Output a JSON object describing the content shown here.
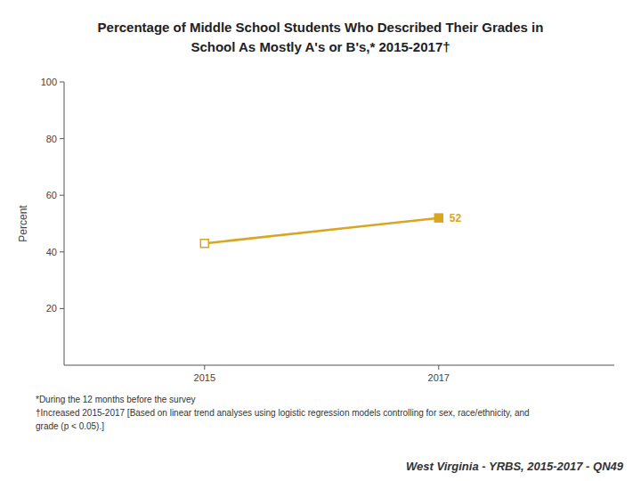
{
  "chart_data": {
    "type": "line",
    "title": "Percentage of Middle School Students Who Described Their Grades in",
    "subtitle": "School As Mostly A's or B's,* 2015-2017†",
    "x": [
      2015,
      2017
    ],
    "values": [
      43.0,
      52.0
    ],
    "xlim": [
      2013.8,
      2018.5
    ],
    "xticks": [
      2015,
      2017
    ],
    "ylim": [
      0,
      100
    ],
    "yticks": [
      20,
      40,
      60,
      80,
      100
    ],
    "y_label": "Percent",
    "color": "#DAA520",
    "marker": "square",
    "grid": false,
    "annotations": [
      {
        "x": 2017,
        "y": 52,
        "text": "52"
      }
    ],
    "footnotes": [
      "*During the 12 months before the survey",
      "†Increased 2015-2017 [Based on linear trend analyses using logistic regression models controlling for sex, race/ethnicity, and",
      "grade (p < 0.05).]"
    ],
    "watermark": "West Virginia - YRBS, 2015-2017 - QN49"
  }
}
